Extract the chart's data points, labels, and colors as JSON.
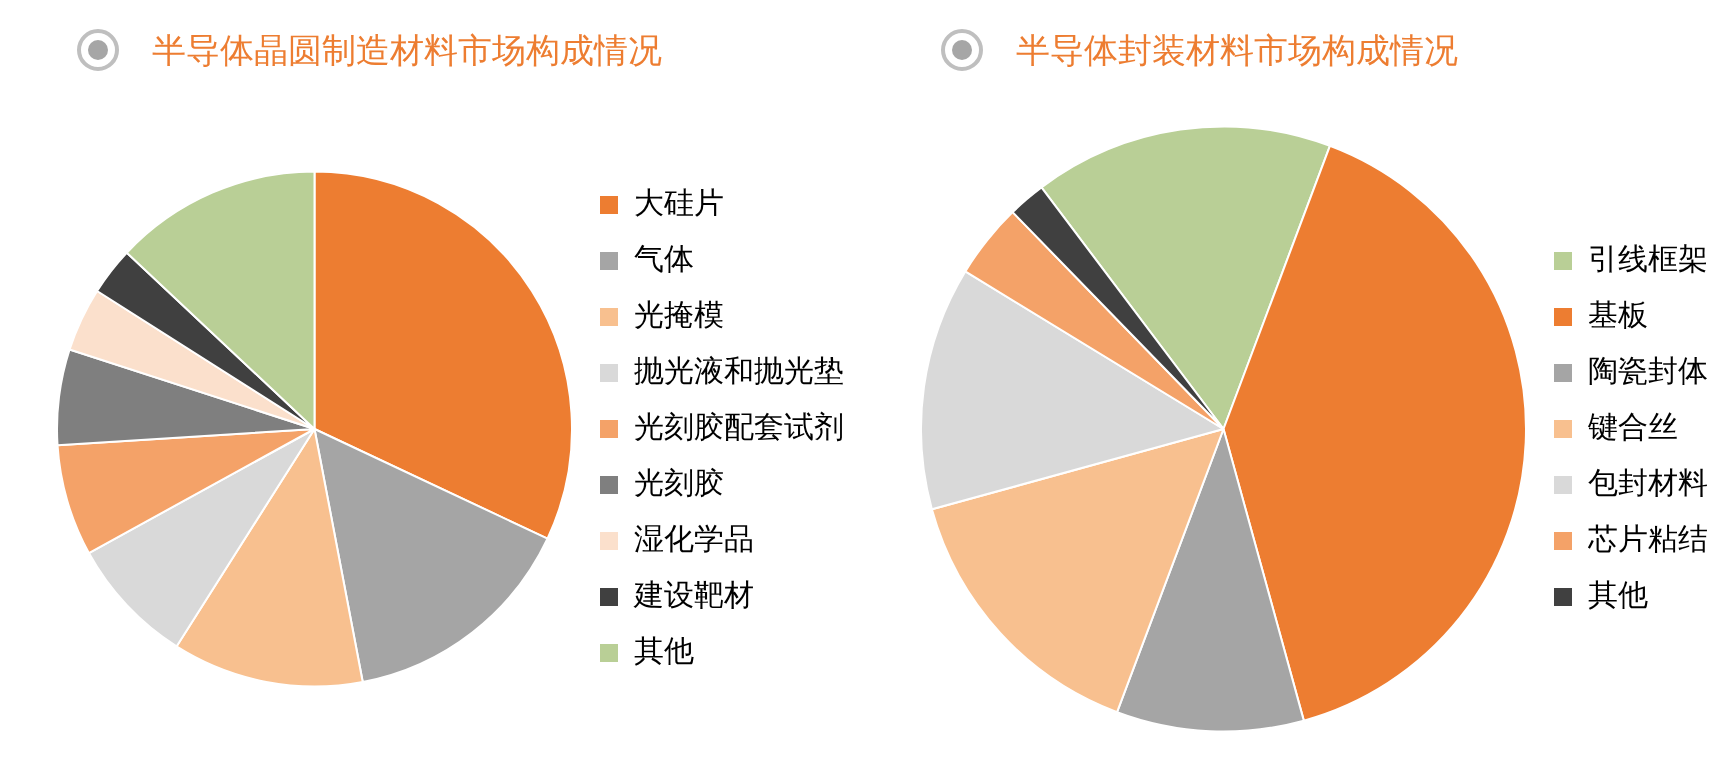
{
  "chart_data": [
    {
      "type": "pie",
      "title": "半导体晶圆制造材料市场构成情况",
      "categories": [
        "大硅片",
        "气体",
        "光掩模",
        "抛光液和抛光垫",
        "光刻胶配套试剂",
        "光刻胶",
        "湿化学品",
        "建设靶材",
        "其他"
      ],
      "values": [
        32,
        15,
        12,
        8,
        7,
        6,
        4,
        3,
        13
      ],
      "colors": [
        "#ed7d31",
        "#a5a5a5",
        "#f8c08f",
        "#d9d9d9",
        "#f4a268",
        "#7f7f7f",
        "#fbe0cc",
        "#404040",
        "#b9cf96"
      ],
      "legend": "right"
    },
    {
      "type": "pie",
      "title": "半导体封装材料市场构成情况",
      "categories": [
        "引线框架",
        "基板",
        "陶瓷封体",
        "键合丝",
        "包封材料",
        "芯片粘结",
        "其他"
      ],
      "values": [
        16,
        40,
        10,
        15,
        13,
        4,
        2
      ],
      "colors": [
        "#b9cf96",
        "#ed7d31",
        "#a5a5a5",
        "#f8c08f",
        "#d9d9d9",
        "#f4a268",
        "#404040"
      ],
      "legend": "right"
    }
  ]
}
